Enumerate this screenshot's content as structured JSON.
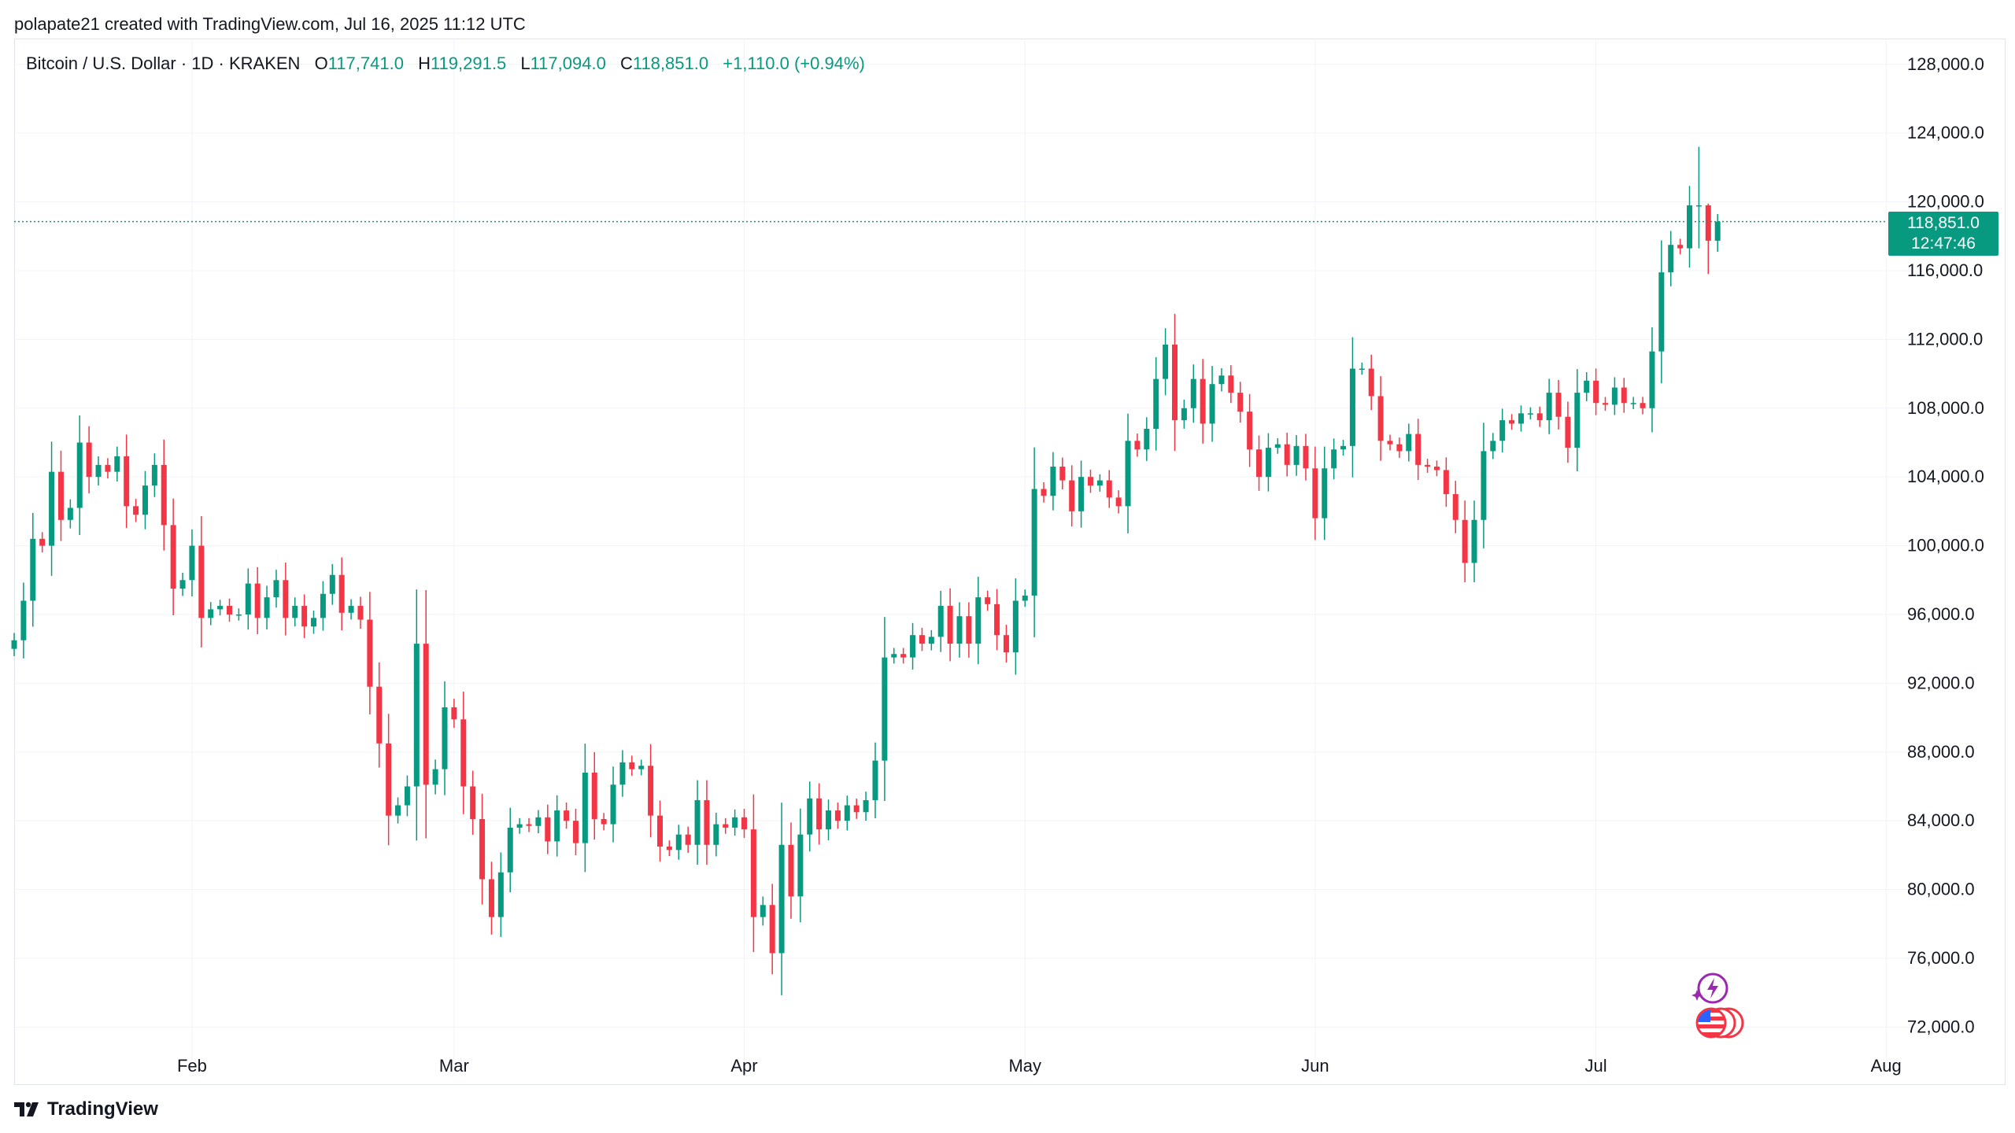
{
  "header": {
    "publisher_line": "polapate21 created with TradingView.com, Jul 16, 2025 11:12 UTC"
  },
  "legend": {
    "symbol": "Bitcoin / U.S. Dollar · 1D · KRAKEN",
    "o_label": "O",
    "o_value": "117,741.0",
    "h_label": "H",
    "h_value": "119,291.5",
    "l_label": "L",
    "l_value": "117,094.0",
    "c_label": "C",
    "c_value": "118,851.0",
    "change": "+1,110.0 (+0.94%)"
  },
  "price_badge": {
    "price": "118,851.0",
    "countdown": "12:47:46"
  },
  "footer": {
    "brand": "TradingView"
  },
  "icons": [
    "tradingview-logo-icon",
    "lightning-event-icon",
    "us-flag-event-icon"
  ],
  "colors": {
    "up": "#089981",
    "down": "#F23645",
    "grid": "#F0F3FA",
    "text": "#131722",
    "event_purple": "#9C27B0"
  },
  "chart_data": {
    "type": "candlestick",
    "x_axis_type": "date",
    "ylim": [
      69500,
      129500
    ],
    "grid": true,
    "price_line": 118851,
    "y_ticks": [
      128000,
      124000,
      120000,
      116000,
      112000,
      108000,
      104000,
      100000,
      96000,
      92000,
      88000,
      84000,
      80000,
      76000,
      72000
    ],
    "y_tick_labels": [
      "128,000.0",
      "124,000.0",
      "120,000.0",
      "116,000.0",
      "112,000.0",
      "108,000.0",
      "104,000.0",
      "100,000.0",
      "96,000.0",
      "92,000.0",
      "88,000.0",
      "84,000.0",
      "80,000.0",
      "76,000.0",
      "72,000.0"
    ],
    "x_ticks": [
      {
        "date": "2025-02-01",
        "label": "Feb"
      },
      {
        "date": "2025-03-01",
        "label": "Mar"
      },
      {
        "date": "2025-04-01",
        "label": "Apr"
      },
      {
        "date": "2025-05-01",
        "label": "May"
      },
      {
        "date": "2025-06-01",
        "label": "Jun"
      },
      {
        "date": "2025-07-01",
        "label": "Jul"
      },
      {
        "date": "2025-08-01",
        "label": "Aug"
      }
    ],
    "x_range": [
      "2025-01-13",
      "2025-08-03"
    ],
    "series": [
      {
        "start_date": "2025-01-13",
        "interval": "1D",
        "close": [
          94500,
          96800,
          100400,
          100000,
          104300,
          101500,
          102200,
          106000,
          104000,
          104700,
          104300,
          105200,
          102300,
          101800,
          103500,
          104700,
          101200,
          97500,
          98000,
          100000,
          95800,
          96300,
          96500,
          96000,
          96000,
          97800,
          95800,
          97000,
          98000,
          95800,
          96500,
          95300,
          95800,
          97200,
          98300,
          96100,
          96500,
          95700,
          91800,
          88500,
          84300,
          84900,
          86000,
          94300,
          86100,
          87000,
          90600,
          89900,
          86000,
          84100,
          80600,
          78400,
          81000,
          83600,
          83800,
          83700,
          84200,
          82800,
          84600,
          84000,
          82700,
          86800,
          84100,
          83800,
          86100,
          87400,
          87000,
          87200,
          84300,
          82500,
          82300,
          83200,
          82600,
          85200,
          82600,
          83800,
          83600,
          84200,
          83500,
          78400,
          79100,
          76300,
          82600,
          79600,
          83200,
          85300,
          83500,
          84600,
          84000,
          84900,
          84500,
          85200,
          87500,
          93500,
          93700,
          93500,
          94800,
          94300,
          94700,
          96500,
          94300,
          95900,
          94300,
          97000,
          96600,
          94800,
          93800,
          96800,
          97100,
          103300,
          102900,
          104600,
          103800,
          102000,
          104000,
          103500,
          103800,
          102800,
          102300,
          106100,
          105600,
          106800,
          109700,
          111700,
          107300,
          108000,
          109700,
          107100,
          109400,
          109900,
          108900,
          107800,
          105600,
          104000,
          105700,
          105900,
          104700,
          105800,
          104500,
          101600,
          104500,
          105600,
          105800,
          110300,
          110300,
          108700,
          106100,
          105900,
          105500,
          106500,
          104700,
          104600,
          104400,
          103000,
          101500,
          99000,
          101500,
          105500,
          106100,
          107300,
          107100,
          107700,
          107700,
          107300,
          108900,
          107500,
          105700,
          108900,
          109600,
          108300,
          108200,
          109200,
          108300,
          108300,
          108000,
          111300,
          115900,
          117500,
          117300,
          119800,
          119800,
          117741,
          118851
        ]
      }
    ]
  }
}
